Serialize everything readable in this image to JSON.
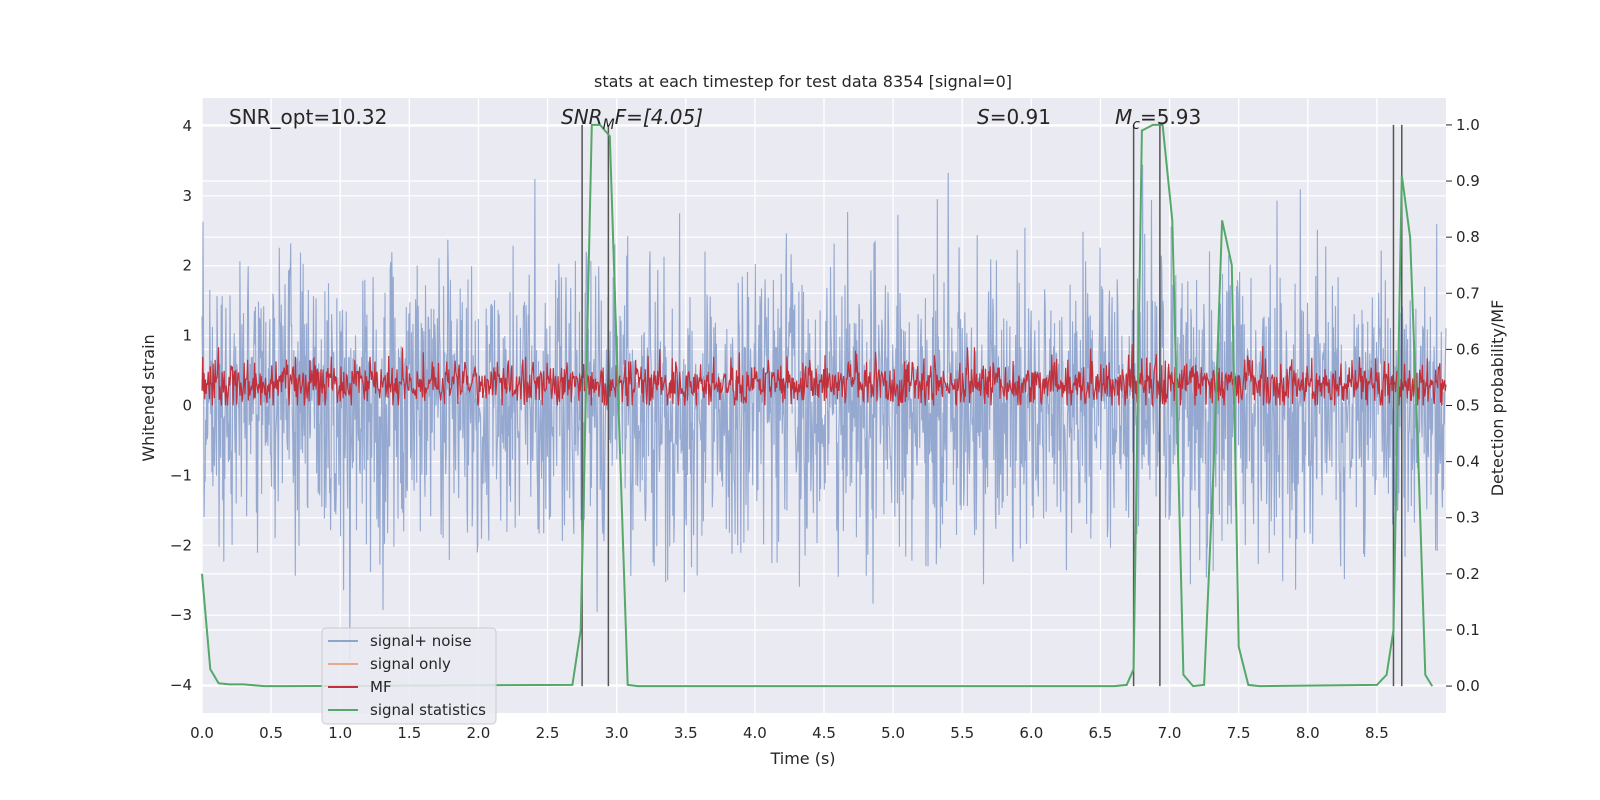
{
  "chart_data": {
    "type": "line",
    "title": "stats at each timestep for test data 8354 [signal=0]",
    "xlabel": "Time (s)",
    "ylabel": "Whitened strain",
    "y2label": "Detection probability/MF",
    "xlim": [
      0,
      9
    ],
    "ylim": [
      -4.4,
      4.4
    ],
    "y2lim": [
      -0.048,
      1.048
    ],
    "xticks": [
      0.0,
      0.5,
      1.0,
      1.5,
      2.0,
      2.5,
      3.0,
      3.5,
      4.0,
      4.5,
      5.0,
      5.5,
      6.0,
      6.5,
      7.0,
      7.5,
      8.0,
      8.5
    ],
    "yticks": [
      -4,
      -3,
      -2,
      -1,
      0,
      1,
      2,
      3,
      4
    ],
    "y2ticks": [
      0.0,
      0.1,
      0.2,
      0.3,
      0.4,
      0.5,
      0.6,
      0.7,
      0.8,
      0.9,
      1.0
    ],
    "annotations": {
      "snr_opt": "SNR_opt=10.32",
      "snr_mf_main": "SNR",
      "snr_mf_sub": "M",
      "snr_mf_rest": "F=[4.05]",
      "s_sym": "S",
      "s_val": "=0.91",
      "mc_sym": "M",
      "mc_sub": "c",
      "mc_val": "=5.93"
    },
    "legend": {
      "placement": "lower-left",
      "entries": [
        {
          "label": "signal+ noise",
          "color": "#8fa4cd"
        },
        {
          "label": "signal only",
          "color": "#e8a98a"
        },
        {
          "label": "MF",
          "color": "#c0313c"
        },
        {
          "label": "signal statistics",
          "color": "#55a868"
        }
      ]
    },
    "series": [
      {
        "name": "signal+ noise",
        "description": "whitened strain noise, approx. Gaussian, std ~1, peaks to +/-3.6"
      },
      {
        "name": "MF",
        "description": "matched filter output, fluctuating between 0 and 1.0 (left axis)"
      },
      {
        "name": "signal statistics",
        "axis": "right",
        "x": [
          0.0,
          0.06,
          0.12,
          0.2,
          0.3,
          0.45,
          0.6,
          2.68,
          2.74,
          2.78,
          2.82,
          2.88,
          2.95,
          3.02,
          3.08,
          3.15,
          6.6,
          6.69,
          6.74,
          6.8,
          6.88,
          6.95,
          7.02,
          7.1,
          7.17,
          7.25,
          7.32,
          7.38,
          7.45,
          7.5,
          7.57,
          7.65,
          8.5,
          8.57,
          8.62,
          8.68,
          8.74,
          8.8,
          8.85,
          8.9
        ],
        "values": [
          0.2,
          0.03,
          0.005,
          0.003,
          0.003,
          0.0,
          0.0,
          0.002,
          0.1,
          0.55,
          1.0,
          1.0,
          0.98,
          0.45,
          0.002,
          0.0,
          0.0,
          0.002,
          0.03,
          0.99,
          1.0,
          1.0,
          0.83,
          0.02,
          0.0,
          0.002,
          0.4,
          0.83,
          0.75,
          0.07,
          0.002,
          0.0,
          0.002,
          0.02,
          0.1,
          0.91,
          0.8,
          0.4,
          0.02,
          0.0
        ]
      }
    ],
    "vertical_lines_x": [
      2.75,
      2.94,
      6.74,
      6.93,
      8.62,
      8.68
    ],
    "colors": {
      "plot_bg": "#eaeaf2",
      "grid": "#ffffff",
      "noise": "#8fa4cd",
      "signal_only": "#e8a98a",
      "mf": "#c0313c",
      "stats": "#55a868",
      "vline": "#555555"
    }
  }
}
